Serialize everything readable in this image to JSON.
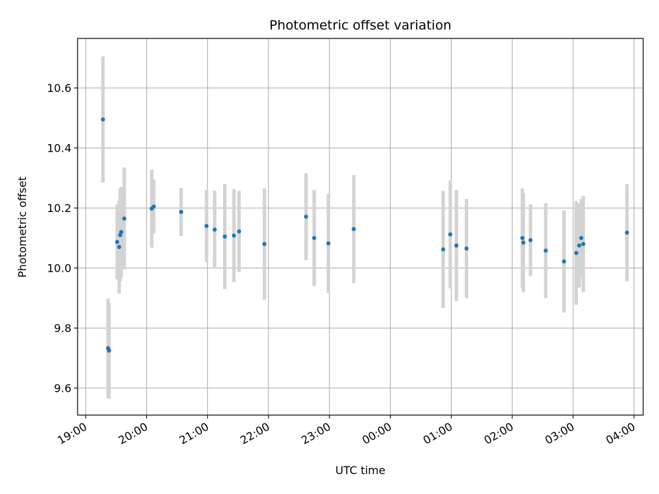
{
  "chart_data": {
    "type": "scatter",
    "title": "Photometric offset variation",
    "xlabel": "UTC time",
    "ylabel": "Photometric offset",
    "grid": true,
    "legend": "none",
    "colors": {
      "points": "#1f77b4",
      "errorbars": "#d3d3d3",
      "grid": "#b0b0b0"
    },
    "xlim": [
      "18:52",
      "04:09"
    ],
    "ylim": [
      9.51,
      10.765
    ],
    "x_ticks": [
      "19:00",
      "20:00",
      "21:00",
      "22:00",
      "23:00",
      "00:00",
      "01:00",
      "02:00",
      "03:00",
      "04:00"
    ],
    "y_ticks": [
      "9.6",
      "9.8",
      "10.0",
      "10.2",
      "10.4",
      "10.6"
    ],
    "points": [
      {
        "time": "19:17",
        "y": 10.495,
        "err": 0.21
      },
      {
        "time": "19:22",
        "y": 9.733,
        "err": 0.165
      },
      {
        "time": "19:23",
        "y": 9.725,
        "err": 0.16
      },
      {
        "time": "19:31",
        "y": 10.087,
        "err": 0.125
      },
      {
        "time": "19:33",
        "y": 10.07,
        "err": 0.155
      },
      {
        "time": "19:34",
        "y": 10.11,
        "err": 0.155
      },
      {
        "time": "19:35",
        "y": 10.12,
        "err": 0.15
      },
      {
        "time": "19:38",
        "y": 10.165,
        "err": 0.17
      },
      {
        "time": "20:05",
        "y": 10.198,
        "err": 0.13
      },
      {
        "time": "20:07",
        "y": 10.205,
        "err": 0.09
      },
      {
        "time": "20:34",
        "y": 10.187,
        "err": 0.08
      },
      {
        "time": "20:59",
        "y": 10.14,
        "err": 0.12
      },
      {
        "time": "21:07",
        "y": 10.128,
        "err": 0.13
      },
      {
        "time": "21:17",
        "y": 10.105,
        "err": 0.175
      },
      {
        "time": "21:26",
        "y": 10.108,
        "err": 0.155
      },
      {
        "time": "21:31",
        "y": 10.122,
        "err": 0.135
      },
      {
        "time": "21:56",
        "y": 10.08,
        "err": 0.185
      },
      {
        "time": "22:37",
        "y": 10.171,
        "err": 0.145
      },
      {
        "time": "22:45",
        "y": 10.1,
        "err": 0.16
      },
      {
        "time": "22:59",
        "y": 10.082,
        "err": 0.165
      },
      {
        "time": "23:24",
        "y": 10.13,
        "err": 0.18
      },
      {
        "time": "00:52",
        "y": 10.062,
        "err": 0.195
      },
      {
        "time": "00:59",
        "y": 10.112,
        "err": 0.18
      },
      {
        "time": "01:05",
        "y": 10.075,
        "err": 0.185
      },
      {
        "time": "01:15",
        "y": 10.065,
        "err": 0.165
      },
      {
        "time": "02:10",
        "y": 10.1,
        "err": 0.165
      },
      {
        "time": "02:11",
        "y": 10.085,
        "err": 0.165
      },
      {
        "time": "02:18",
        "y": 10.093,
        "err": 0.12
      },
      {
        "time": "02:33",
        "y": 10.058,
        "err": 0.158
      },
      {
        "time": "02:51",
        "y": 10.022,
        "err": 0.17
      },
      {
        "time": "03:03",
        "y": 10.05,
        "err": 0.173
      },
      {
        "time": "03:06",
        "y": 10.075,
        "err": 0.14
      },
      {
        "time": "03:08",
        "y": 10.1,
        "err": 0.13
      },
      {
        "time": "03:10",
        "y": 10.08,
        "err": 0.16
      },
      {
        "time": "03:53",
        "y": 10.118,
        "err": 0.162
      }
    ]
  }
}
